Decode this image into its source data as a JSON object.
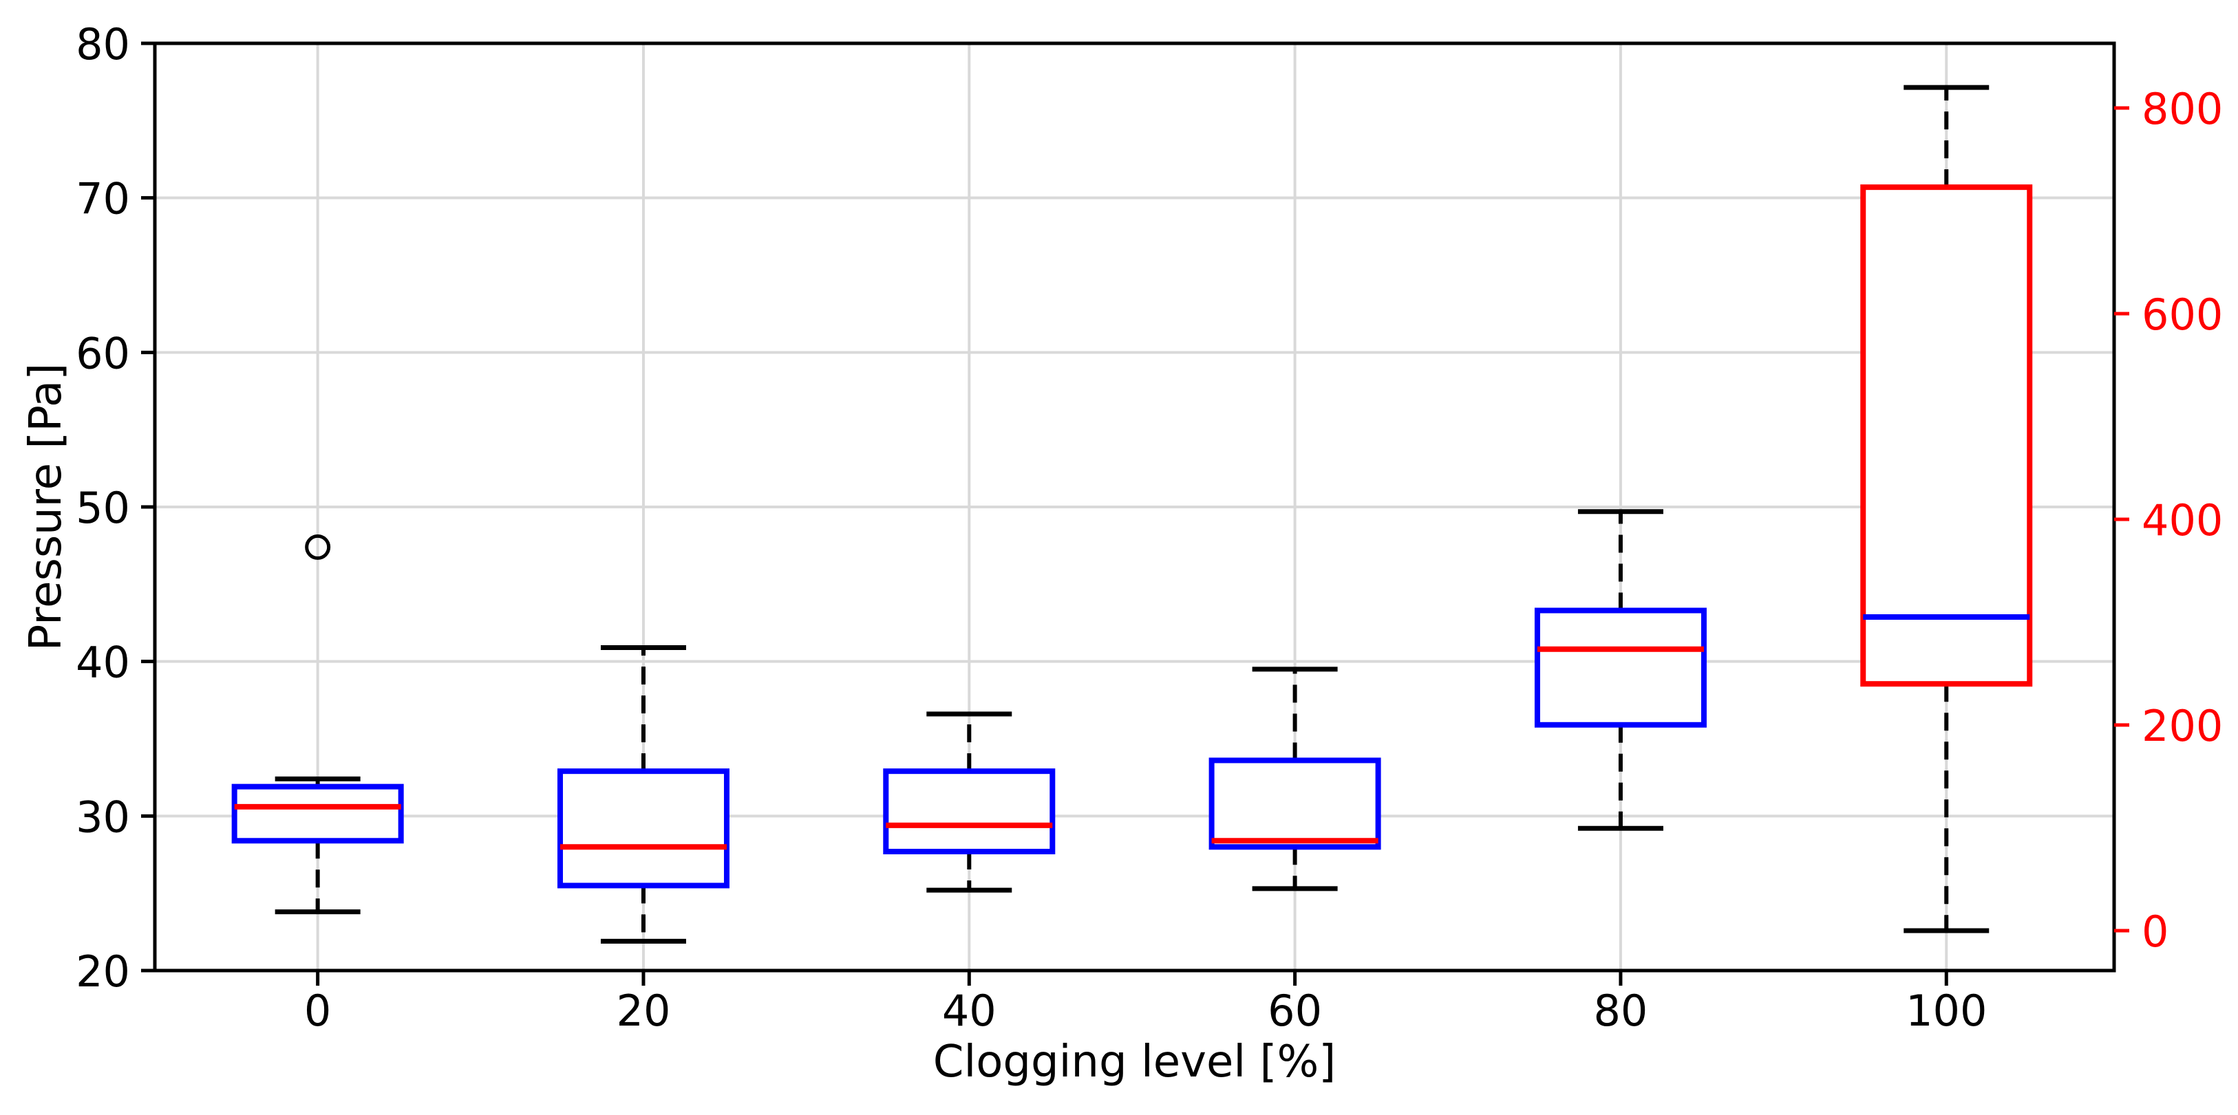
{
  "chart_data": {
    "type": "boxplot",
    "title": "",
    "xlabel": "Clogging level [%]",
    "ylabel_left": "Pressure [Pa]",
    "ylabel_right": "",
    "x_axis": {
      "ticks": [
        0,
        20,
        40,
        60,
        80,
        100
      ],
      "lim": [
        -10,
        110.3
      ]
    },
    "y_left": {
      "label": "Pressure [Pa]",
      "ticks": [
        20,
        30,
        40,
        50,
        60,
        70,
        80
      ],
      "grid_ticks": [
        30,
        40,
        50,
        60,
        70
      ],
      "lim": [
        20,
        80
      ],
      "color": "#000000"
    },
    "y_right": {
      "label": "",
      "ticks": [
        0,
        200,
        400,
        600,
        800
      ],
      "lim": [
        -38.8,
        862.9
      ],
      "color": "#ff0000"
    },
    "grid": true,
    "legend": null,
    "series": [
      {
        "x": 0,
        "axis": "left",
        "whislo": 23.8,
        "q1": 28.4,
        "med": 30.6,
        "q3": 31.9,
        "whishi": 32.4,
        "fliers": [
          47.4
        ],
        "box_color": "#0000ff",
        "median_color": "#ff0000"
      },
      {
        "x": 20,
        "axis": "left",
        "whislo": 21.9,
        "q1": 25.5,
        "med": 28.0,
        "q3": 32.9,
        "whishi": 40.9,
        "fliers": [],
        "box_color": "#0000ff",
        "median_color": "#ff0000"
      },
      {
        "x": 40,
        "axis": "left",
        "whislo": 25.2,
        "q1": 27.7,
        "med": 29.4,
        "q3": 32.9,
        "whishi": 36.6,
        "fliers": [],
        "box_color": "#0000ff",
        "median_color": "#ff0000"
      },
      {
        "x": 60,
        "axis": "left",
        "whislo": 25.3,
        "q1": 28.0,
        "med": 28.4,
        "q3": 33.6,
        "whishi": 39.5,
        "fliers": [],
        "box_color": "#0000ff",
        "median_color": "#ff0000"
      },
      {
        "x": 80,
        "axis": "left",
        "whislo": 29.2,
        "q1": 35.9,
        "med": 40.8,
        "q3": 43.3,
        "whishi": 49.7,
        "fliers": [],
        "box_color": "#0000ff",
        "median_color": "#ff0000"
      },
      {
        "x": 100,
        "axis": "right",
        "whislo": 0,
        "q1": 240,
        "med": 305,
        "q3": 723,
        "whishi": 820,
        "fliers": [],
        "box_color": "#ff0000",
        "median_color": "#0000ff"
      }
    ],
    "colors": {
      "whisker": "#000000",
      "cap": "#000000",
      "flier_edge": "#000000",
      "grid": "#d9d9d9",
      "spine": "#000000",
      "background": "#ffffff"
    }
  }
}
